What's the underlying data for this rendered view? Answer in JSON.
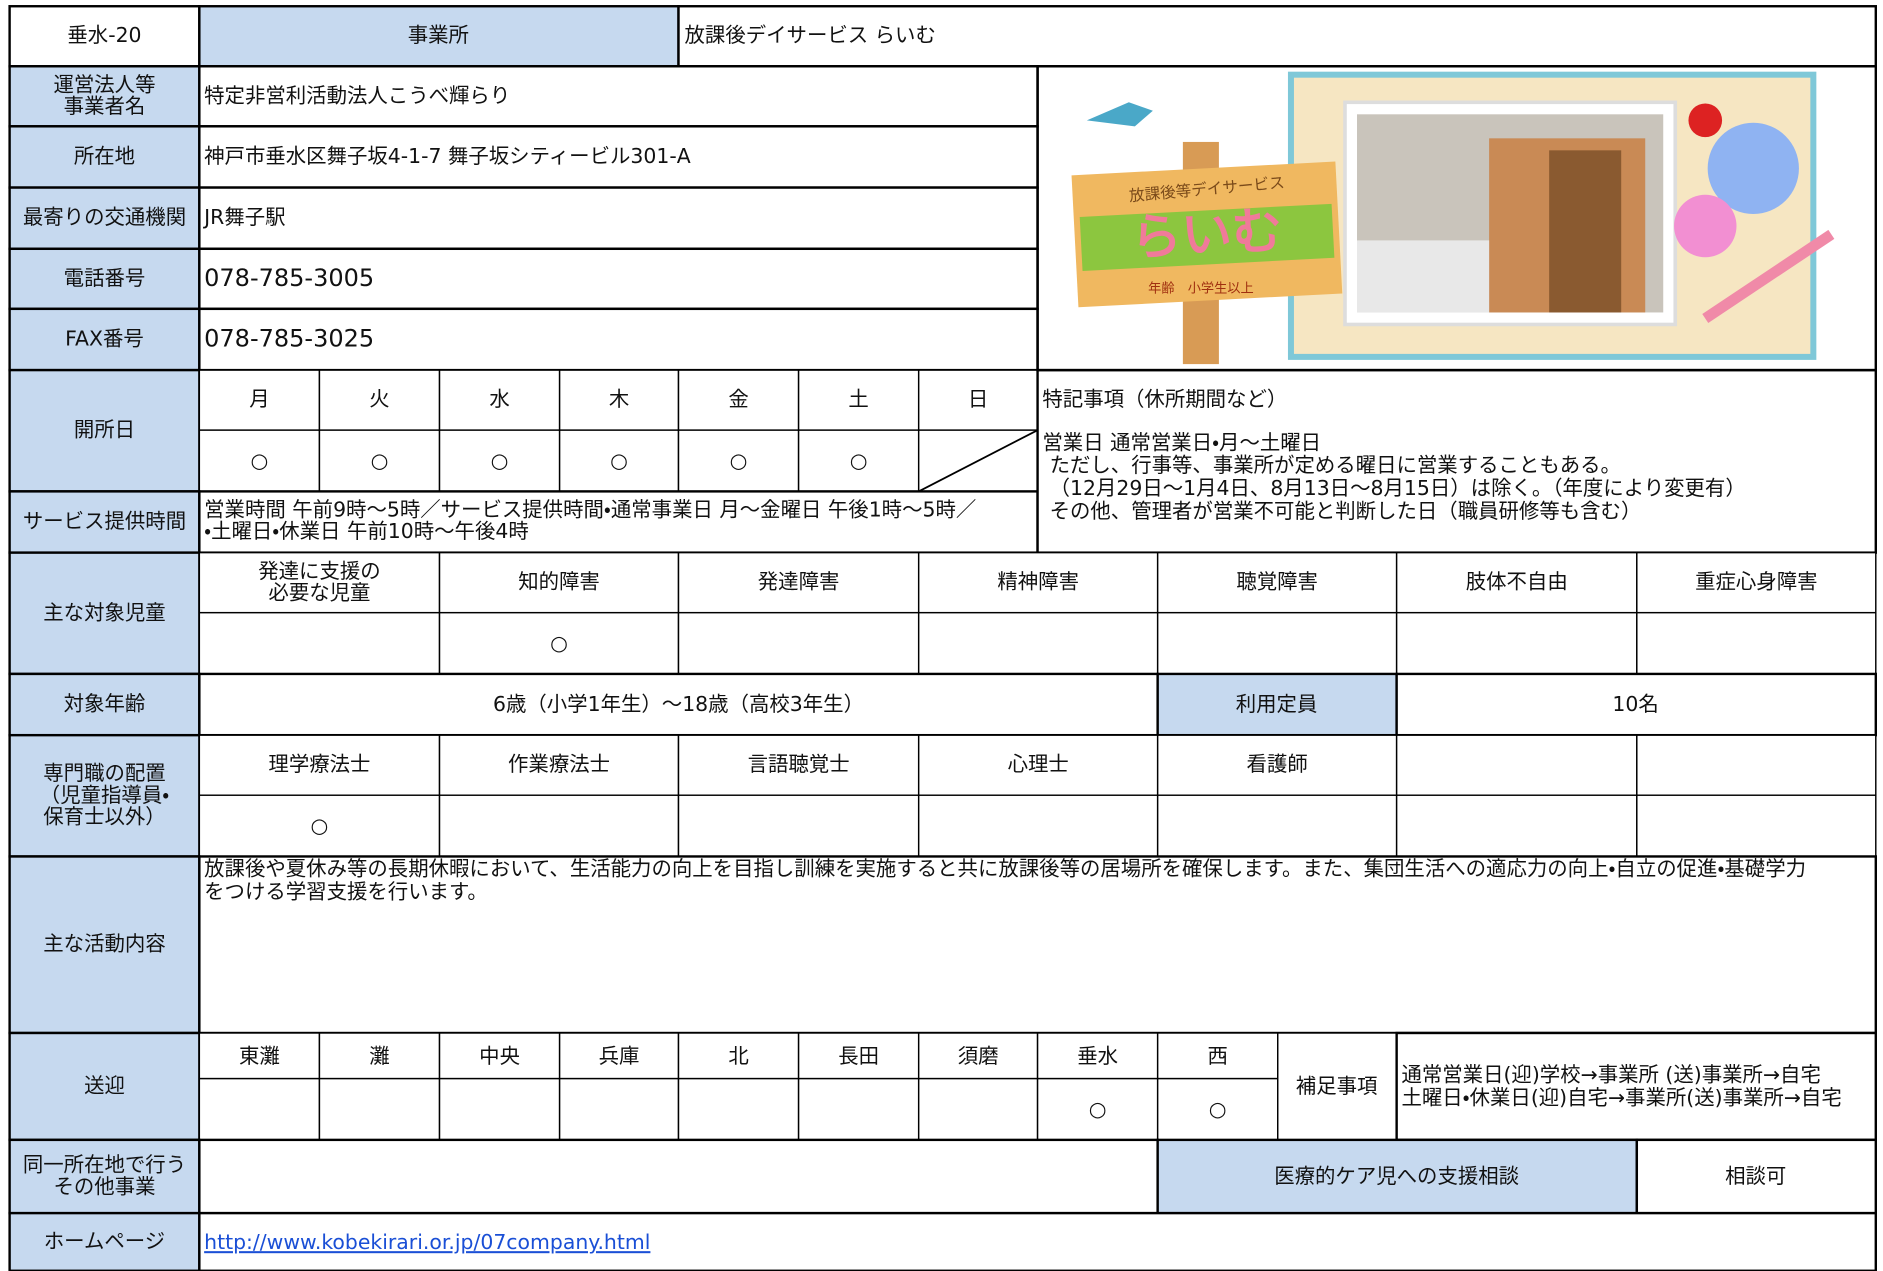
{
  "header": {
    "id": "垂水-20",
    "label": "事業所",
    "name": "放課後デイサービス らいむ"
  },
  "info": [
    {
      "label": [
        "運営法人等",
        "事業者名"
      ],
      "value": "特定非営利活動法人こうべ輝らり"
    },
    {
      "label": [
        "所在地"
      ],
      "value": "神戸市垂水区舞子坂4-1-7 舞子坂シティービル301-A"
    },
    {
      "label": [
        "最寄りの交通機関"
      ],
      "value": "JR舞子駅"
    },
    {
      "label": [
        "電話番号"
      ],
      "value": "078-785-3005"
    },
    {
      "label": [
        "FAX番号"
      ],
      "value": "078-785-3025"
    }
  ],
  "image": {
    "sign_title": "放課後等デイサービス",
    "sign_name": "らいむ",
    "sign_note": "年齢　小学生以上"
  },
  "open_days": {
    "label": "開所日",
    "days": [
      "月",
      "火",
      "水",
      "木",
      "金",
      "土",
      "日"
    ],
    "marks": [
      "○",
      "○",
      "○",
      "○",
      "○",
      "○"
    ]
  },
  "service_hours": {
    "label": "サービス提供時間",
    "lines": [
      "営業時間 午前9時～5時／サービス提供時間・通常事業日 月～金曜日 午後1時～5時／",
      "・土曜日・休業日 午前10時～午後4時"
    ]
  },
  "notes": {
    "title": "特記事項（休所期間など）",
    "lines": [
      "営業日 通常営業日・月～土曜日",
      "ただし、行事等、事業所が定める曜日に営業することもある。",
      "（12月29日～1月4日、8月13日～8月15日）は除く。（年度により変更有）",
      "その他、管理者が営業不可能と判断した日（職員研修等も含む）"
    ]
  },
  "targets": {
    "label": "主な対象児童",
    "categories": [
      [
        "発達に支援の",
        "必要な児童"
      ],
      [
        "知的障害"
      ],
      [
        "発達障害"
      ],
      [
        "精神障害"
      ],
      [
        "聴覚障害"
      ],
      [
        "肢体不自由"
      ],
      [
        "重症心身障害"
      ]
    ],
    "marks": [
      null,
      "○",
      null,
      null,
      null,
      null,
      null
    ]
  },
  "age": {
    "label": "対象年齢",
    "value": "6歳（小学1年生）～18歳（高校3年生）",
    "capacity_label": "利用定員",
    "capacity": "10名"
  },
  "staff": {
    "label": [
      "専門職の配置",
      "（児童指導員・",
      "保育士以外）"
    ],
    "roles": [
      "理学療法士",
      "作業療法士",
      "言語聴覚士",
      "心理士",
      "看護師"
    ],
    "marks": [
      "○",
      null,
      null,
      null,
      null
    ]
  },
  "activities": {
    "label": "主な活動内容",
    "lines": [
      "放課後や夏休み等の長期休暇において、生活能力の向上を目指し訓練を実施すると共に放課後等の居場所を確保します。また、集団生活への適応力の向上・自立の促進・基礎学力",
      "をつける学習支援を行います。"
    ]
  },
  "transport": {
    "label": "送迎",
    "areas": [
      "東灘",
      "灘",
      "中央",
      "兵庫",
      "北",
      "長田",
      "須磨",
      "垂水",
      "西"
    ],
    "marks": [
      null,
      null,
      null,
      null,
      null,
      null,
      null,
      "○",
      "○"
    ],
    "note_label": "補足事項",
    "note_lines": [
      "通常営業日(迎)学校→事業所 (送)事業所→自宅",
      "土曜日・休業日(迎)自宅→事業所(送)事業所→自宅"
    ]
  },
  "other": {
    "label": [
      "同一所在地で行う",
      "その他事業"
    ],
    "medical_label": "医療的ケア児への支援相談",
    "medical_value": "相談可"
  },
  "homepage": {
    "label": "ホームページ",
    "url": "http://www.kobekirari.or.jp/07company.html"
  }
}
